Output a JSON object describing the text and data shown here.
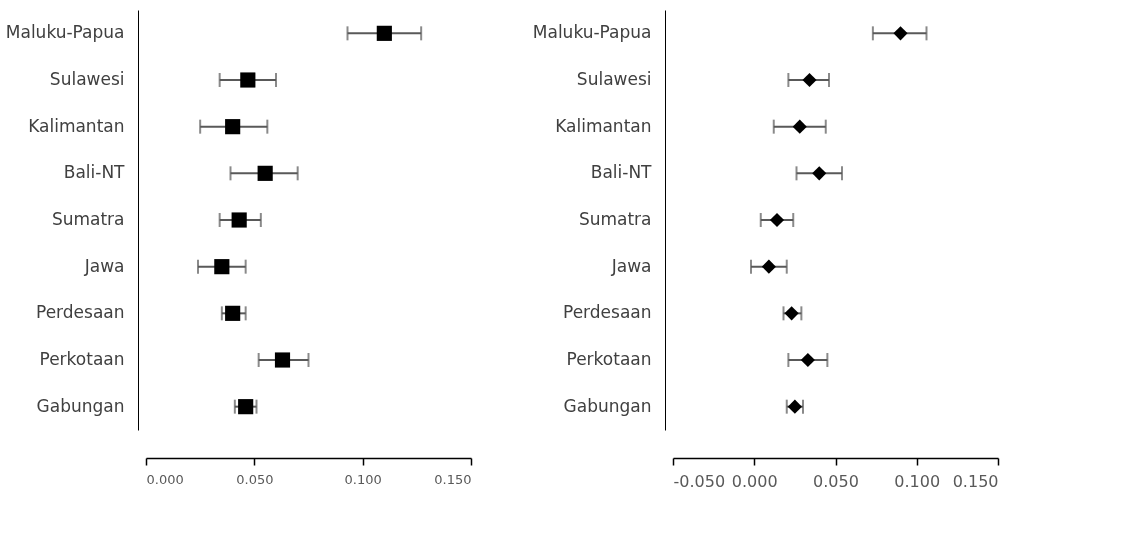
{
  "chart_data": [
    {
      "type": "scatter",
      "orientation": "horizontal",
      "marker": "square",
      "grid": false,
      "categories": [
        "Maluku-Papua",
        "Sulawesi",
        "Kalimantan",
        "Bali-NT",
        "Sumatra",
        "Jawa",
        "Perdesaan",
        "Perkotaan",
        "Gabungan"
      ],
      "series": [
        {
          "color": "#000000",
          "values": [
            0.11,
            0.047,
            0.04,
            0.055,
            0.043,
            0.035,
            0.04,
            0.063,
            0.046
          ],
          "errors": [
            [
              0.093,
              0.127
            ],
            [
              0.034,
              0.06
            ],
            [
              0.025,
              0.056
            ],
            [
              0.039,
              0.07
            ],
            [
              0.034,
              0.053
            ],
            [
              0.024,
              0.046
            ],
            [
              0.035,
              0.046
            ],
            [
              0.052,
              0.075
            ],
            [
              0.041,
              0.051
            ]
          ]
        }
      ],
      "xlim": [
        0,
        0.15
      ],
      "xticks": [
        {
          "value": 0,
          "label": "0.000"
        },
        {
          "value": 0.05,
          "label": "0.050"
        },
        {
          "value": 0.1,
          "label": "0.100"
        },
        {
          "value": 0.15,
          "label": "0.150"
        }
      ]
    },
    {
      "type": "scatter",
      "orientation": "horizontal",
      "marker": "diamond",
      "grid": false,
      "categories": [
        "Maluku-Papua",
        "Sulawesi",
        "Kalimantan",
        "Bali-NT",
        "Sumatra",
        "Jawa",
        "Perdesaan",
        "Perkotaan",
        "Gabungan"
      ],
      "series": [
        {
          "color": "#000000",
          "values": [
            0.09,
            0.034,
            0.028,
            0.04,
            0.014,
            0.009,
            0.023,
            0.033,
            0.025
          ],
          "errors": [
            [
              0.073,
              0.106
            ],
            [
              0.021,
              0.046
            ],
            [
              0.012,
              0.044
            ],
            [
              0.026,
              0.054
            ],
            [
              0.004,
              0.024
            ],
            [
              -0.002,
              0.02
            ],
            [
              0.018,
              0.029
            ],
            [
              0.021,
              0.045
            ],
            [
              0.02,
              0.03
            ]
          ]
        }
      ],
      "xlim": [
        -0.05,
        0.15
      ],
      "xticks": [
        {
          "value": -0.05,
          "label": "-0.050"
        },
        {
          "value": 0,
          "label": "0.000"
        },
        {
          "value": 0.05,
          "label": "0.050"
        },
        {
          "value": 0.1,
          "label": "0.100"
        },
        {
          "value": 0.15,
          "label": "0.150"
        }
      ]
    }
  ]
}
